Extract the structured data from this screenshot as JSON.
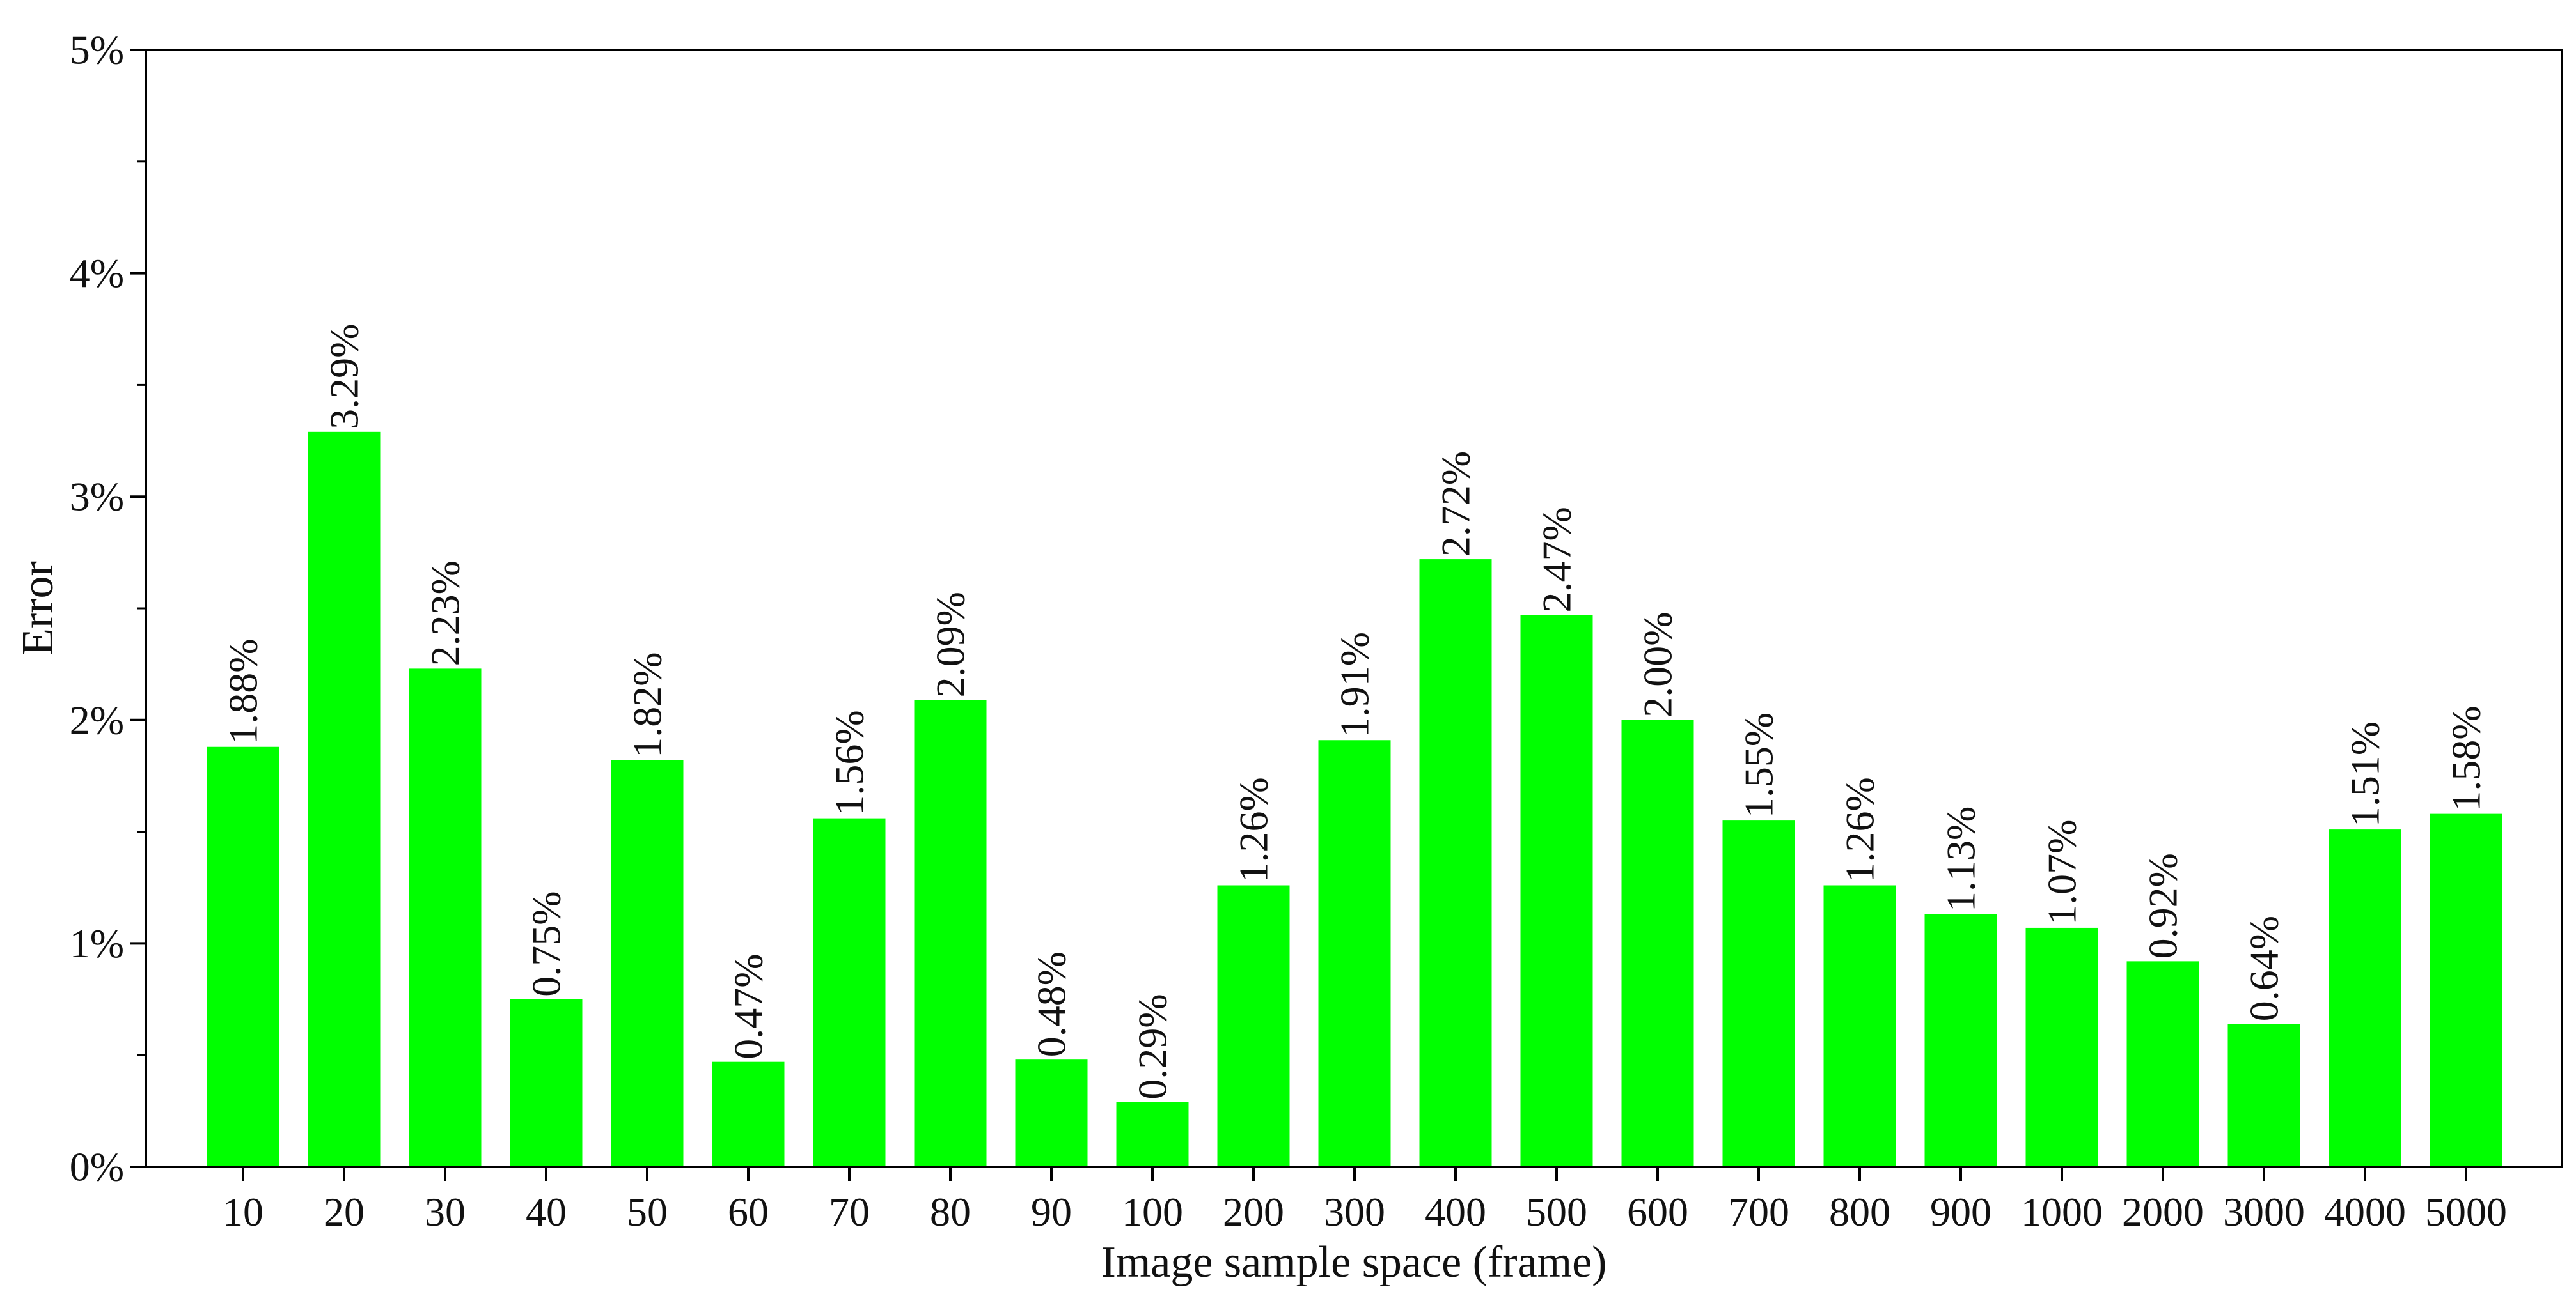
{
  "chart_data": {
    "type": "bar",
    "title": "",
    "xlabel": "Image sample space (frame)",
    "ylabel": "Error",
    "ylim": [
      0,
      5
    ],
    "yticks": [
      0,
      1,
      2,
      3,
      4,
      5
    ],
    "ytick_labels": [
      "0%",
      "1%",
      "2%",
      "3%",
      "4%",
      "5%"
    ],
    "grid": false,
    "legend": "none",
    "bar_color": "#00ff00",
    "categories": [
      "10",
      "20",
      "30",
      "40",
      "50",
      "60",
      "70",
      "80",
      "90",
      "100",
      "200",
      "300",
      "400",
      "500",
      "600",
      "700",
      "800",
      "900",
      "1000",
      "2000",
      "3000",
      "4000",
      "5000"
    ],
    "values": [
      1.88,
      3.29,
      2.23,
      0.75,
      1.82,
      0.47,
      1.56,
      2.09,
      0.48,
      0.29,
      1.26,
      1.91,
      2.72,
      2.47,
      2.0,
      1.55,
      1.26,
      1.13,
      1.07,
      0.92,
      0.64,
      1.51,
      1.58
    ],
    "value_labels": [
      "1.88%",
      "3.29%",
      "2.23%",
      "0.75%",
      "1.82%",
      "0.47%",
      "1.56%",
      "2.09%",
      "0.48%",
      "0.29%",
      "1.26%",
      "1.91%",
      "2.72%",
      "2.47%",
      "2.00%",
      "1.55%",
      "1.26%",
      "1.13%",
      "1.07%",
      "0.92%",
      "0.64%",
      "1.51%",
      "1.58%"
    ]
  }
}
